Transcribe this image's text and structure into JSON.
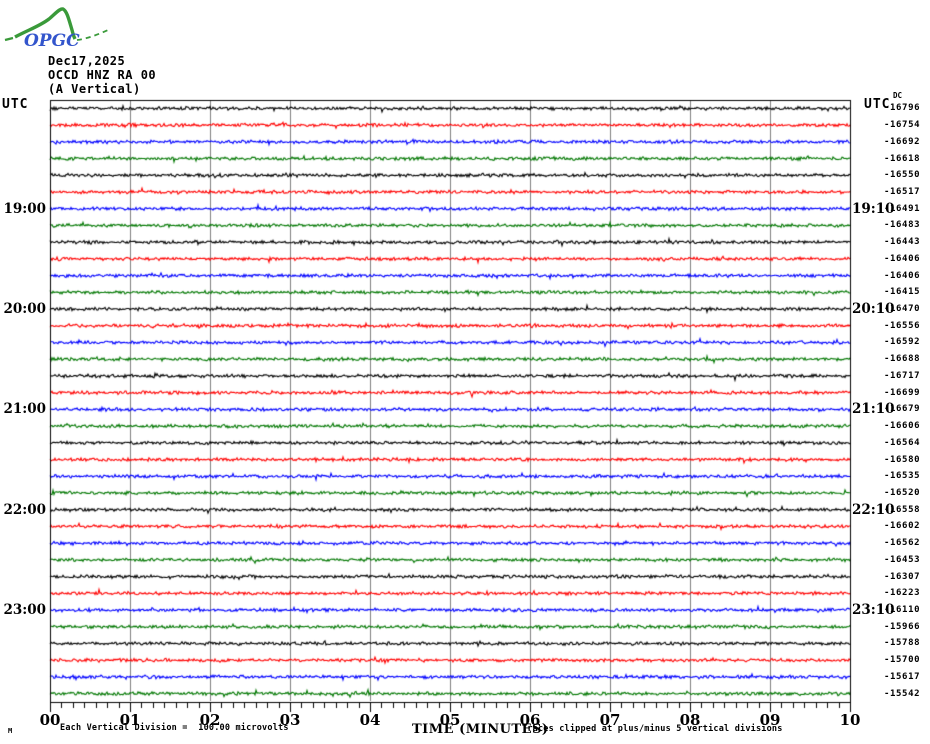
{
  "header": {
    "logo_text": "OPGC",
    "date": "Dec17,2025",
    "station": "OCCD HNZ RA 00",
    "channel": "(A Vertical)",
    "utc_left": "UTC",
    "utc_right": "UTC",
    "dc_label": "DC"
  },
  "footer": {
    "corner_glyph": "M",
    "division_note": "Each Vertical Division =  100.00 microvolts",
    "clip_note": "Traces clipped at plus/minus 5 vertical divisions"
  },
  "chart_data": {
    "type": "line",
    "subtype": "helicorder-seismogram",
    "title": "OCCD HNZ RA 00 (A Vertical) Dec17,2025",
    "xlabel": "TIME (MINUTES)",
    "x_range": [
      0,
      10
    ],
    "x_tick_labels": [
      "00",
      "01",
      "02",
      "03",
      "04",
      "05",
      "06",
      "07",
      "08",
      "09",
      "10"
    ],
    "minutes_per_trace": 10,
    "traces_count": 36,
    "grid": {
      "vertical_gridlines_at_minutes": [
        1,
        2,
        3,
        4,
        5,
        6,
        7,
        8,
        9
      ],
      "gridline_color": "#7f7f7f"
    },
    "color_cycle": [
      "#000000",
      "#ff0000",
      "#0000ff",
      "#007700"
    ],
    "left_time_labels": [
      {
        "row": 6,
        "label": "19:00"
      },
      {
        "row": 12,
        "label": "20:00"
      },
      {
        "row": 18,
        "label": "21:00"
      },
      {
        "row": 24,
        "label": "22:00"
      },
      {
        "row": 30,
        "label": "23:00"
      }
    ],
    "right_time_labels": [
      {
        "row": 6,
        "label": "19:10"
      },
      {
        "row": 12,
        "label": "20:10"
      },
      {
        "row": 18,
        "label": "21:10"
      },
      {
        "row": 24,
        "label": "22:10"
      },
      {
        "row": 30,
        "label": "23:10"
      }
    ],
    "dc_offsets": [
      -16796,
      -16754,
      -16692,
      -16618,
      -16550,
      -16517,
      -16491,
      -16483,
      -16443,
      -16406,
      -16406,
      -16415,
      -16470,
      -16556,
      -16592,
      -16688,
      -16717,
      -16699,
      -16679,
      -16606,
      -16564,
      -16580,
      -16535,
      -16520,
      -16558,
      -16602,
      -16562,
      -16453,
      -16307,
      -16223,
      -16110,
      -15966,
      -15788,
      -15700,
      -15617,
      -15542
    ]
  }
}
